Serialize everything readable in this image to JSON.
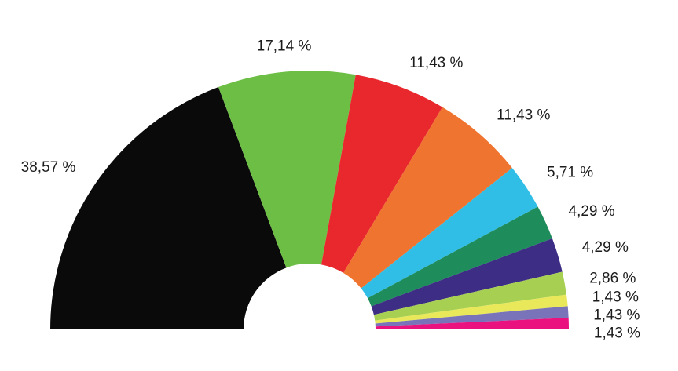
{
  "chart_data": {
    "type": "pie",
    "subtype": "half-donut",
    "title": "",
    "legend": "none",
    "grid": false,
    "value_unit": "%",
    "value_format": "comma-decimal",
    "start_angle_deg": 180,
    "end_angle_deg": 0,
    "background_color": "#ffffff",
    "label_text_color": "#1c1c1c",
    "slices": [
      {
        "label": "38,57 %",
        "value": 38.57,
        "color": "#0a0a0a"
      },
      {
        "label": "17,14 %",
        "value": 17.14,
        "color": "#6dbe45"
      },
      {
        "label": "11,43 %",
        "value": 11.43,
        "color": "#e8282c"
      },
      {
        "label": "11,43 %",
        "value": 11.43,
        "color": "#ef7430"
      },
      {
        "label": "5,71 %",
        "value": 5.71,
        "color": "#30bde6"
      },
      {
        "label": "4,29 %",
        "value": 4.29,
        "color": "#1f8c5c"
      },
      {
        "label": "4,29 %",
        "value": 4.29,
        "color": "#3e2d85"
      },
      {
        "label": "2,86 %",
        "value": 2.86,
        "color": "#a7d052"
      },
      {
        "label": "1,43 %",
        "value": 1.43,
        "color": "#e9e85b"
      },
      {
        "label": "1,43 %",
        "value": 1.43,
        "color": "#7973b9"
      },
      {
        "label": "1,43 %",
        "value": 1.43,
        "color": "#ea127f"
      }
    ]
  }
}
